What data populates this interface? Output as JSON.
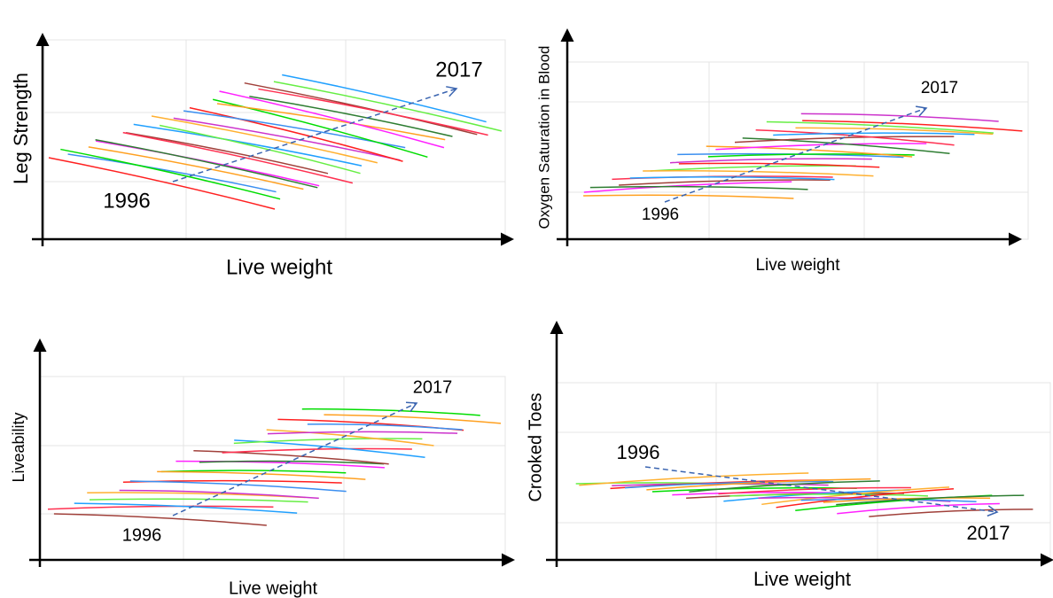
{
  "panels": [
    {
      "y_label": "Leg Strength",
      "x_label": "Live weight",
      "start_label": "1996",
      "end_label": "2017"
    },
    {
      "y_label": "Oxygen Saturation in Blood",
      "x_label": "Live weight",
      "start_label": "1996",
      "end_label": "2017"
    },
    {
      "y_label": "Liveability",
      "x_label": "Live weight",
      "start_label": "1996",
      "end_label": "2017"
    },
    {
      "y_label": "Crooked Toes",
      "x_label": "Live weight",
      "start_label": "1996",
      "end_label": "2017"
    }
  ]
}
